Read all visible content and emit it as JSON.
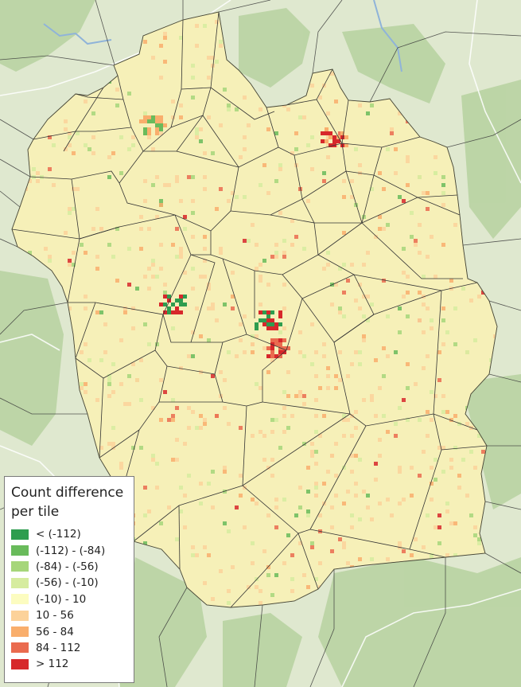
{
  "map": {
    "basemap_colors": {
      "land": "#dfe8cf",
      "forest": "#b9d3a2",
      "region_fill": "#f6f0b8",
      "cell_borders": "#3a3a3a",
      "roads": "#ffffff",
      "water": "#8fb3d9"
    }
  },
  "legend": {
    "title": "Count difference per tile",
    "classes": [
      {
        "label": "< (-112)",
        "color": "#2e9d4f"
      },
      {
        "label": "(-112) - (-84)",
        "color": "#69bb5b"
      },
      {
        "label": "(-84) - (-56)",
        "color": "#a6d67a"
      },
      {
        "label": "(-56) - (-10)",
        "color": "#d6ec9f"
      },
      {
        "label": "(-10) - 10",
        "color": "#fcfcc0"
      },
      {
        "label": "10 - 56",
        "color": "#fcd29a"
      },
      {
        "label": "56 - 84",
        "color": "#f9ae6c"
      },
      {
        "label": "84 - 112",
        "color": "#ea6b4f"
      },
      {
        "label": "> 112",
        "color": "#d7282b"
      }
    ]
  }
}
